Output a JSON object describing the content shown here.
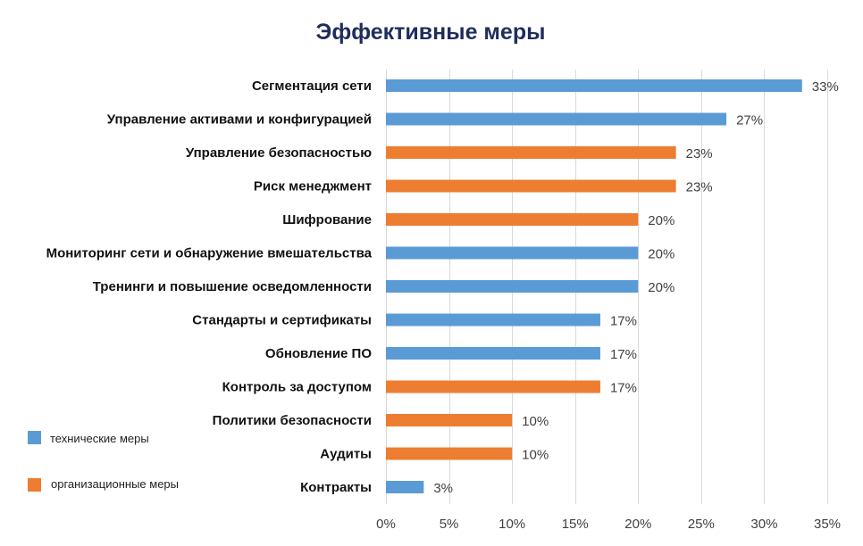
{
  "chart_data": {
    "type": "bar",
    "orientation": "horizontal",
    "title": "Эффективные меры",
    "categories": [
      "Сегментация сети",
      "Управление активами и конфигурацией",
      "Управление безопасностью",
      "Риск менеджмент",
      "Шифрование",
      "Мониторинг сети и обнаружение вмешательства",
      "Тренинги и повышение осведомленности",
      "Стандарты и сертификаты",
      "Обновление ПО",
      "Контроль за доступом",
      "Политики безопасности",
      "Аудиты",
      "Контракты"
    ],
    "values": [
      33,
      27,
      23,
      23,
      20,
      20,
      20,
      17,
      17,
      17,
      10,
      10,
      3
    ],
    "value_labels": [
      "33%",
      "27%",
      "23%",
      "23%",
      "20%",
      "20%",
      "20%",
      "17%",
      "17%",
      "17%",
      "10%",
      "10%",
      "3%"
    ],
    "groups": [
      "tech",
      "tech",
      "org",
      "org",
      "org",
      "tech",
      "tech",
      "tech",
      "tech",
      "org",
      "org",
      "org",
      "tech"
    ],
    "xlim": [
      0,
      35
    ],
    "xticks": [
      0,
      5,
      10,
      15,
      20,
      25,
      30,
      35
    ],
    "xtick_labels": [
      "0%",
      "5%",
      "10%",
      "15%",
      "20%",
      "25%",
      "30%",
      "35%"
    ],
    "xlabel": "",
    "ylabel": "",
    "grid": true,
    "legend": {
      "position": "bottom-left",
      "items": [
        {
          "key": "tech",
          "label": "технические меры",
          "color": "#5b9bd5"
        },
        {
          "key": "org",
          "label": "организационные меры",
          "color": "#ed7d31"
        }
      ]
    }
  }
}
